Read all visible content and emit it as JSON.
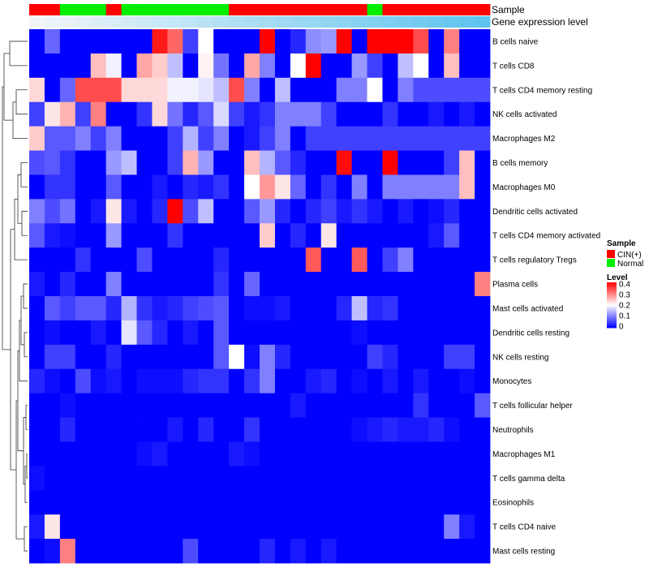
{
  "chart_data": {
    "type": "heatmap",
    "title": "",
    "rows": [
      "B cells naive",
      "T cells CD8",
      "T cells CD4 memory resting",
      "NK cells activated",
      "Macrophages M2",
      "B cells memory",
      "Macrophages M0",
      "Dendritic cells activated",
      "T cells CD4 memory activated",
      "T cells regulatory  Tregs",
      "Plasma cells",
      "Mast cells activated",
      "Dendritic cells resting",
      "NK cells resting",
      "Monocytes",
      "T cells follicular helper",
      "Neutrophils",
      "Macrophages M1",
      "T cells gamma delta",
      "Eosinophils",
      "T cells CD4 naive",
      "Mast cells resting"
    ],
    "annotations": {
      "sample_label": "Sample",
      "level_label": "Gene expression level",
      "sample": [
        "CIN(+)",
        "CIN(+)",
        "Normal",
        "Normal",
        "Normal",
        "CIN(+)",
        "Normal",
        "Normal",
        "Normal",
        "Normal",
        "Normal",
        "Normal",
        "Normal",
        "CIN(+)",
        "CIN(+)",
        "CIN(+)",
        "CIN(+)",
        "CIN(+)",
        "CIN(+)",
        "CIN(+)",
        "CIN(+)",
        "CIN(+)",
        "Normal",
        "CIN(+)",
        "CIN(+)",
        "CIN(+)",
        "CIN(+)",
        "CIN(+)",
        "CIN(+)",
        "CIN(+)"
      ],
      "sample_colors": {
        "CIN(+)": "#ff0000",
        "Normal": "#00ee00"
      },
      "level_gradient": [
        "#f2f5f9",
        "#5ec4f0"
      ]
    },
    "values": [
      [
        0.0,
        0.08,
        0.0,
        0.0,
        0.0,
        0.0,
        0.0,
        0.0,
        0.38,
        0.32,
        0.05,
        0.2,
        0.0,
        0.0,
        0.0,
        0.4,
        0.0,
        0.03,
        0.11,
        0.12,
        0.4,
        0.0,
        0.4,
        0.4,
        0.4,
        0.34,
        0.0,
        0.3,
        0.0,
        0.0
      ],
      [
        0.0,
        0.0,
        0.0,
        0.0,
        0.25,
        0.19,
        0.0,
        0.27,
        0.24,
        0.15,
        0.0,
        0.21,
        0.09,
        0.0,
        0.27,
        0.1,
        0.0,
        0.2,
        0.4,
        0.0,
        0.0,
        0.12,
        0.05,
        0.0,
        0.15,
        0.2,
        0.0,
        0.25,
        0.0,
        0.0
      ],
      [
        0.23,
        0.0,
        0.08,
        0.34,
        0.34,
        0.34,
        0.23,
        0.23,
        0.23,
        0.19,
        0.19,
        0.18,
        0.15,
        0.34,
        0.1,
        0.0,
        0.15,
        0.0,
        0.0,
        0.0,
        0.1,
        0.1,
        0.2,
        0.0,
        0.1,
        0.06,
        0.06,
        0.06,
        0.06,
        0.06
      ],
      [
        0.05,
        0.22,
        0.26,
        0.05,
        0.3,
        0.0,
        0.0,
        0.04,
        0.23,
        0.09,
        0.03,
        0.07,
        0.17,
        0.05,
        0.02,
        0.04,
        0.1,
        0.1,
        0.1,
        0.05,
        0.0,
        0.0,
        0.0,
        0.04,
        0.0,
        0.0,
        0.02,
        0.0,
        0.02,
        0.0
      ],
      [
        0.24,
        0.07,
        0.07,
        0.1,
        0.05,
        0.1,
        0.0,
        0.0,
        0.0,
        0.05,
        0.14,
        0.05,
        0.1,
        0.0,
        0.02,
        0.05,
        0.1,
        0.0,
        0.05,
        0.05,
        0.05,
        0.05,
        0.05,
        0.05,
        0.05,
        0.05,
        0.05,
        0.05,
        0.05,
        0.05
      ],
      [
        0.06,
        0.07,
        0.04,
        0.0,
        0.0,
        0.12,
        0.15,
        0.0,
        0.0,
        0.05,
        0.26,
        0.12,
        0.0,
        0.0,
        0.25,
        0.14,
        0.07,
        0.03,
        0.0,
        0.0,
        0.39,
        0.0,
        0.0,
        0.4,
        0.0,
        0.0,
        0.0,
        0.05,
        0.25,
        0.0
      ],
      [
        0.0,
        0.04,
        0.04,
        0.0,
        0.0,
        0.07,
        0.0,
        0.0,
        0.02,
        0.0,
        0.03,
        0.02,
        0.04,
        0.0,
        0.2,
        0.28,
        0.22,
        0.08,
        0.0,
        0.04,
        0.0,
        0.1,
        0.0,
        0.1,
        0.1,
        0.1,
        0.1,
        0.1,
        0.25,
        0.0
      ],
      [
        0.1,
        0.06,
        0.09,
        0.0,
        0.02,
        0.22,
        0.02,
        0.0,
        0.03,
        0.4,
        0.06,
        0.15,
        0.0,
        0.0,
        0.07,
        0.12,
        0.03,
        0.0,
        0.03,
        0.05,
        0.02,
        0.04,
        0.02,
        0.0,
        0.02,
        0.0,
        0.01,
        0.03,
        0.0,
        0.0
      ],
      [
        0.07,
        0.02,
        0.01,
        0.0,
        0.0,
        0.12,
        0.0,
        0.0,
        0.0,
        0.04,
        0.0,
        0.0,
        0.0,
        0.0,
        0.0,
        0.24,
        0.0,
        0.03,
        0.0,
        0.22,
        0.0,
        0.0,
        0.0,
        0.0,
        0.0,
        0.0,
        0.02,
        0.07,
        0.0,
        0.0
      ],
      [
        0.0,
        0.0,
        0.0,
        0.04,
        0.0,
        0.0,
        0.0,
        0.06,
        0.0,
        0.0,
        0.0,
        0.0,
        0.03,
        0.0,
        0.0,
        0.0,
        0.0,
        0.0,
        0.33,
        0.0,
        0.0,
        0.33,
        0.0,
        0.05,
        0.1,
        0.0,
        0.0,
        0.0,
        0.0,
        0.0
      ],
      [
        0.02,
        0.0,
        0.03,
        0.0,
        0.0,
        0.1,
        0.0,
        0.0,
        0.0,
        0.0,
        0.0,
        0.0,
        0.04,
        0.0,
        0.08,
        0.0,
        0.0,
        0.0,
        0.0,
        0.0,
        0.0,
        0.0,
        0.0,
        0.0,
        0.0,
        0.0,
        0.0,
        0.0,
        0.0,
        0.3
      ],
      [
        0.0,
        0.07,
        0.05,
        0.07,
        0.07,
        0.03,
        0.14,
        0.04,
        0.02,
        0.03,
        0.05,
        0.06,
        0.07,
        0.0,
        0.01,
        0.01,
        0.02,
        0.0,
        0.0,
        0.0,
        0.03,
        0.15,
        0.03,
        0.04,
        0.0,
        0.0,
        0.0,
        0.0,
        0.0,
        0.0
      ],
      [
        0.0,
        0.01,
        0.0,
        0.0,
        0.02,
        0.0,
        0.18,
        0.07,
        0.03,
        0.0,
        0.02,
        0.0,
        0.07,
        0.0,
        0.0,
        0.0,
        0.0,
        0.0,
        0.0,
        0.0,
        0.0,
        0.01,
        0.0,
        0.0,
        0.0,
        0.0,
        0.0,
        0.0,
        0.0,
        0.0
      ],
      [
        0.0,
        0.05,
        0.05,
        0.0,
        0.0,
        0.03,
        0.0,
        0.0,
        0.0,
        0.0,
        0.0,
        0.0,
        0.07,
        0.2,
        0.01,
        0.1,
        0.03,
        0.0,
        0.0,
        0.0,
        0.0,
        0.0,
        0.05,
        0.03,
        0.0,
        0.0,
        0.0,
        0.05,
        0.05,
        0.0
      ],
      [
        0.03,
        0.01,
        0.0,
        0.06,
        0.01,
        0.02,
        0.0,
        0.01,
        0.01,
        0.01,
        0.03,
        0.04,
        0.04,
        0.0,
        0.04,
        0.1,
        0.0,
        0.0,
        0.02,
        0.03,
        0.0,
        0.01,
        0.0,
        0.02,
        0.0,
        0.02,
        0.0,
        0.0,
        0.01,
        0.0
      ],
      [
        0.0,
        0.0,
        0.01,
        0.0,
        0.0,
        0.0,
        0.0,
        0.0,
        0.0,
        0.0,
        0.0,
        0.0,
        0.0,
        0.0,
        0.0,
        0.0,
        0.0,
        0.02,
        0.0,
        0.0,
        0.0,
        0.0,
        0.0,
        0.0,
        0.0,
        0.04,
        0.0,
        0.0,
        0.0,
        0.07
      ],
      [
        0.0,
        0.0,
        0.03,
        0.0,
        0.0,
        0.0,
        0.0,
        0.0,
        0.0,
        0.02,
        0.0,
        0.03,
        0.0,
        0.0,
        0.04,
        0.0,
        0.0,
        0.0,
        0.0,
        0.0,
        0.0,
        0.01,
        0.02,
        0.03,
        0.02,
        0.02,
        0.03,
        0.01,
        0.0,
        0.0
      ],
      [
        0.0,
        0.0,
        0.0,
        0.0,
        0.0,
        0.0,
        0.0,
        0.01,
        0.02,
        0.0,
        0.0,
        0.0,
        0.0,
        0.02,
        0.01,
        0.0,
        0.0,
        0.0,
        0.0,
        0.0,
        0.0,
        0.0,
        0.0,
        0.0,
        0.0,
        0.0,
        0.0,
        0.0,
        0.0,
        0.0
      ],
      [
        0.01,
        0.0,
        0.0,
        0.0,
        0.0,
        0.0,
        0.0,
        0.0,
        0.0,
        0.0,
        0.0,
        0.0,
        0.0,
        0.0,
        0.0,
        0.0,
        0.0,
        0.0,
        0.0,
        0.0,
        0.0,
        0.0,
        0.0,
        0.0,
        0.0,
        0.0,
        0.0,
        0.0,
        0.0,
        0.0
      ],
      [
        0.0,
        0.0,
        0.0,
        0.0,
        0.0,
        0.0,
        0.0,
        0.0,
        0.0,
        0.0,
        0.0,
        0.0,
        0.0,
        0.0,
        0.0,
        0.0,
        0.0,
        0.0,
        0.0,
        0.0,
        0.0,
        0.0,
        0.0,
        0.0,
        0.0,
        0.0,
        0.0,
        0.0,
        0.0,
        0.0
      ],
      [
        0.02,
        0.22,
        0.0,
        0.0,
        0.0,
        0.0,
        0.0,
        0.0,
        0.0,
        0.0,
        0.0,
        0.0,
        0.0,
        0.0,
        0.0,
        0.0,
        0.0,
        0.0,
        0.0,
        0.0,
        0.0,
        0.0,
        0.0,
        0.0,
        0.0,
        0.0,
        0.0,
        0.1,
        0.02,
        0.0
      ],
      [
        0.0,
        0.01,
        0.3,
        0.0,
        0.0,
        0.0,
        0.0,
        0.0,
        0.0,
        0.0,
        0.06,
        0.0,
        0.0,
        0.0,
        0.0,
        0.03,
        0.0,
        0.02,
        0.0,
        0.02,
        0.0,
        0.0,
        0.0,
        0.0,
        0.0,
        0.0,
        0.0,
        0.0,
        0.0,
        0.0
      ]
    ],
    "color_scale": {
      "min": 0,
      "max": 0.4,
      "stops": [
        [
          0,
          "#0000ff"
        ],
        [
          0.2,
          "#ffffff"
        ],
        [
          0.4,
          "#ff0000"
        ]
      ]
    },
    "legend": {
      "sample_title": "Sample",
      "sample_entries": [
        "CIN(+)",
        "Normal"
      ],
      "level_title": "Level",
      "level_ticks": [
        "0.4",
        "0.3",
        "0.2",
        "0.1",
        "0"
      ],
      "position": "right"
    },
    "row_dendrogram": true
  }
}
